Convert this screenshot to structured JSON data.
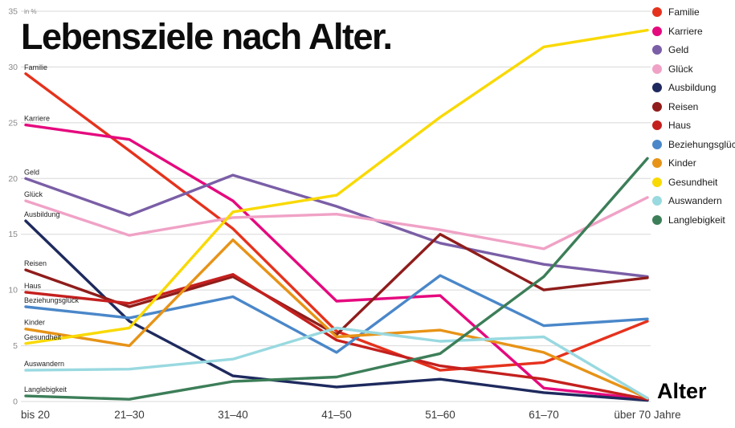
{
  "chart_data": {
    "type": "line",
    "title": "Lebensziele nach Alter.",
    "xlabel": "Alter",
    "ylabel": "in %",
    "ylim": [
      0,
      35
    ],
    "yticks": [
      0,
      5,
      10,
      15,
      20,
      25,
      30,
      35
    ],
    "grid": true,
    "legend_position": "top-right",
    "categories": [
      "bis 20",
      "21–30",
      "31–40",
      "41–50",
      "51–60",
      "61–70",
      "über 70 Jahre"
    ],
    "series": [
      {
        "name": "Familie",
        "color": "#e5321d",
        "values": [
          29.4,
          22.5,
          15.5,
          6.3,
          2.8,
          3.5,
          7.2
        ]
      },
      {
        "name": "Karriere",
        "color": "#e5097e",
        "values": [
          24.8,
          23.5,
          18.0,
          9.0,
          9.5,
          1.2,
          0.2
        ]
      },
      {
        "name": "Geld",
        "color": "#7a5ea6",
        "values": [
          20.0,
          16.7,
          20.3,
          17.5,
          14.2,
          12.3,
          11.2
        ]
      },
      {
        "name": "Glück",
        "color": "#f0a2c6",
        "values": [
          18.0,
          14.9,
          16.5,
          16.8,
          15.4,
          13.7,
          18.3
        ]
      },
      {
        "name": "Ausbildung",
        "color": "#1e2a5e",
        "values": [
          16.2,
          7.2,
          2.3,
          1.3,
          2.0,
          0.8,
          0.1
        ]
      },
      {
        "name": "Reisen",
        "color": "#8f1d1b",
        "values": [
          11.8,
          8.5,
          11.2,
          6.0,
          15.0,
          10.0,
          11.1
        ]
      },
      {
        "name": "Haus",
        "color": "#c4201e",
        "values": [
          9.8,
          8.8,
          11.4,
          5.5,
          3.2,
          2.0,
          0.2
        ]
      },
      {
        "name": "Beziehungsglück",
        "color": "#4a87c9",
        "values": [
          8.5,
          7.5,
          9.4,
          4.4,
          11.3,
          6.8,
          7.4
        ]
      },
      {
        "name": "Kinder",
        "color": "#e79317",
        "values": [
          6.5,
          5.0,
          14.5,
          5.8,
          6.4,
          4.4,
          0.3
        ]
      },
      {
        "name": "Gesundheit",
        "color": "#f9d903",
        "values": [
          5.2,
          6.6,
          17.0,
          18.5,
          25.5,
          31.8,
          33.3
        ]
      },
      {
        "name": "Auswandern",
        "color": "#99d9e0",
        "values": [
          2.8,
          2.9,
          3.8,
          6.6,
          5.4,
          5.8,
          0.3
        ]
      },
      {
        "name": "Langlebigkeit",
        "color": "#3c7e58",
        "values": [
          0.5,
          0.2,
          1.8,
          2.2,
          4.3,
          11.2,
          21.8
        ]
      }
    ]
  }
}
